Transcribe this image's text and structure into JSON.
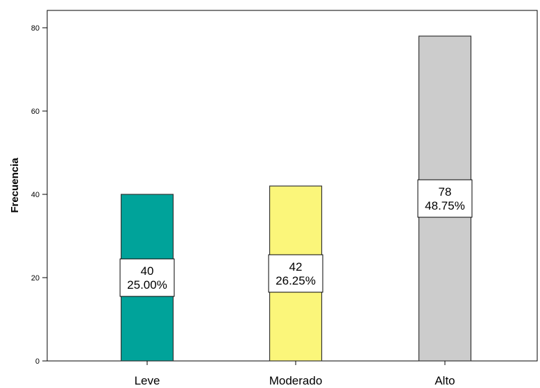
{
  "chart_data": {
    "type": "bar",
    "title": "",
    "xlabel": "",
    "ylabel": "Frecuencia",
    "ylim": [
      0,
      88
    ],
    "yticks": [
      0,
      20,
      40,
      60,
      80
    ],
    "categories": [
      "Leve",
      "Moderado",
      "Alto"
    ],
    "values": [
      40,
      42,
      78
    ],
    "percentages": [
      "25.00%",
      "26.25%",
      "48.75%"
    ],
    "colors": [
      "#00a39a",
      "#fbf67a",
      "#cccccc"
    ],
    "grid": false,
    "legend": "none"
  }
}
